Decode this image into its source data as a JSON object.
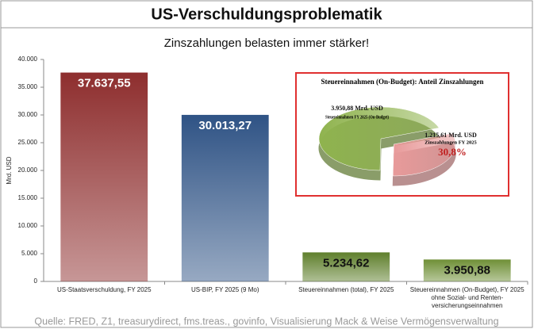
{
  "title": "US-Verschuldungsproblematik",
  "source": "Quelle: FRED, Z1, treasurydirect, fms.treas., govinfo, Visualisierung Mack & Weise Vermögensverwaltung",
  "chart_data": [
    {
      "type": "bar",
      "subtitle": "Zinszahlungen belasten immer stärker!",
      "y_label": "Mrd. USD",
      "categories": [
        "US-Staatsverschuldung, FY 2025",
        "US-BIP, FY 2025 (9 Mo)",
        "Steuereinnahmen (total), FY 2025",
        "Steuereinnahmen (On-Budget), FY 2025 ohne Sozial- und Renten-versicherungseinnahmen"
      ],
      "values": [
        37637.55,
        30013.27,
        5234.62,
        3950.88
      ],
      "value_labels": [
        "37.637,55",
        "30.013,27",
        "5.234,62",
        "3.950,88"
      ],
      "colors": [
        "#8e2e2e",
        "#2f5385",
        "#5f7f2c",
        "#6f8f36"
      ],
      "ylim": [
        0,
        40000
      ],
      "yticks": [
        {
          "value": 0,
          "label": "0"
        },
        {
          "value": 5000,
          "label": "5.000"
        },
        {
          "value": 10000,
          "label": "10.000"
        },
        {
          "value": 15000,
          "label": "15.000"
        },
        {
          "value": 20000,
          "label": "20.000"
        },
        {
          "value": 25000,
          "label": "25.000"
        },
        {
          "value": 30000,
          "label": "30.000"
        },
        {
          "value": 35000,
          "label": "35.000"
        },
        {
          "value": 40000,
          "label": "40.000"
        }
      ]
    },
    {
      "type": "pie",
      "title": "Steuereinnahmen (On-Budget): Anteil Zinszahlungen",
      "categories": [
        "Steuereinnahmen FY 2025 (On-Budget)",
        "Zinszahlungen FY 2025"
      ],
      "values": [
        3950.88,
        1215.61
      ],
      "value_labels": [
        "3.950,88 Mrd. USD",
        "1.215,61 Mrd. USD"
      ],
      "colors": [
        "#8fb34e",
        "#e89a9a"
      ],
      "annotation": {
        "value": 30.8,
        "label": "30,8%"
      }
    }
  ]
}
